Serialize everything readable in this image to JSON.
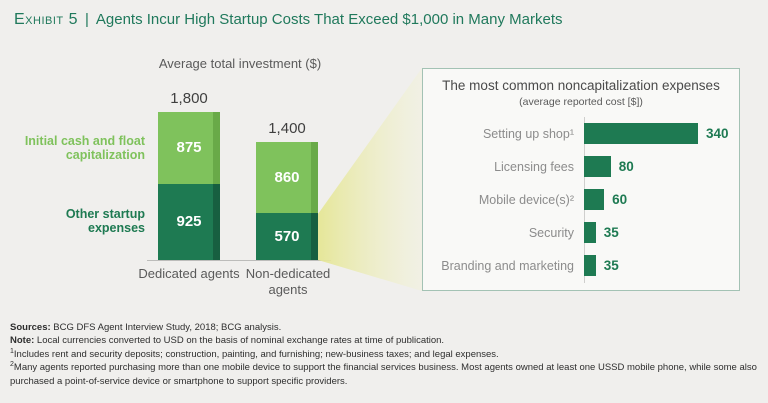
{
  "header": {
    "exhibit_label": "Exhibit 5",
    "separator": "|",
    "title": "Agents Incur High Startup Costs That Exceed $1,000 in Many Markets"
  },
  "stacked_chart": {
    "title": "Average total investment ($)",
    "legend_top": "Initial cash and float capitalization",
    "legend_bottom": "Other startup expenses"
  },
  "panel": {
    "title": "The most common noncapitalization expenses",
    "subtitle": "(average reported cost [$])"
  },
  "footnotes": {
    "sources_label": "Sources:",
    "sources_text": "BCG DFS Agent Interview Study, 2018; BCG analysis.",
    "note_label": "Note:",
    "note_text": "Local currencies converted to USD on the basis of nominal exchange rates at time of publication.",
    "fn1_sup": "1",
    "fn1_text": "Includes rent and security deposits; construction, painting, and furnishing; new-business taxes; and legal expenses.",
    "fn2_sup": "2",
    "fn2_text": "Many agents reported purchasing more than one mobile device to support the financial services business. Most agents owned at least one USSD mobile phone, while some also purchased a point-of-service device or smartphone to support specific providers."
  },
  "colors": {
    "page_bg": "#f0efed",
    "title_green": "#20795c",
    "light_green": "#7fc25c",
    "light_green_edge": "#69aa48",
    "dark_green": "#1e7a52",
    "dark_green_edge": "#175f40",
    "panel_border": "#a3c2b4",
    "panel_bg": "#f9f9f7",
    "axis_gray": "#bcbcba",
    "text_dark": "#3f3f3f",
    "text_gray": "#5a5a5a",
    "label_gray": "#8c8c8c",
    "beam_yellow": "#e5e694",
    "white": "#ffffff"
  },
  "chart_data": [
    {
      "type": "bar",
      "subtype": "stacked-vertical",
      "title": "Average total investment ($)",
      "categories": [
        "Dedicated agents",
        "Non-dedicated agents"
      ],
      "series": [
        {
          "name": "Initial cash and float capitalization",
          "values": [
            875,
            860
          ]
        },
        {
          "name": "Other startup expenses",
          "values": [
            925,
            570
          ]
        }
      ],
      "totals": [
        1800,
        1400
      ],
      "ylim": [
        0,
        1800
      ],
      "grid": false,
      "legend_position": "left-of-bars",
      "value_labels": "inside-segments-and-totals-above"
    },
    {
      "type": "bar",
      "subtype": "horizontal",
      "title": "The most common noncapitalization expenses",
      "subtitle": "(average reported cost [$])",
      "categories": [
        "Setting up shop¹",
        "Licensing fees",
        "Mobile device(s)²",
        "Security",
        "Branding and marketing"
      ],
      "values": [
        340,
        80,
        60,
        35,
        35
      ],
      "xlim": [
        0,
        360
      ],
      "grid": false,
      "value_labels": "right-of-bars"
    }
  ]
}
